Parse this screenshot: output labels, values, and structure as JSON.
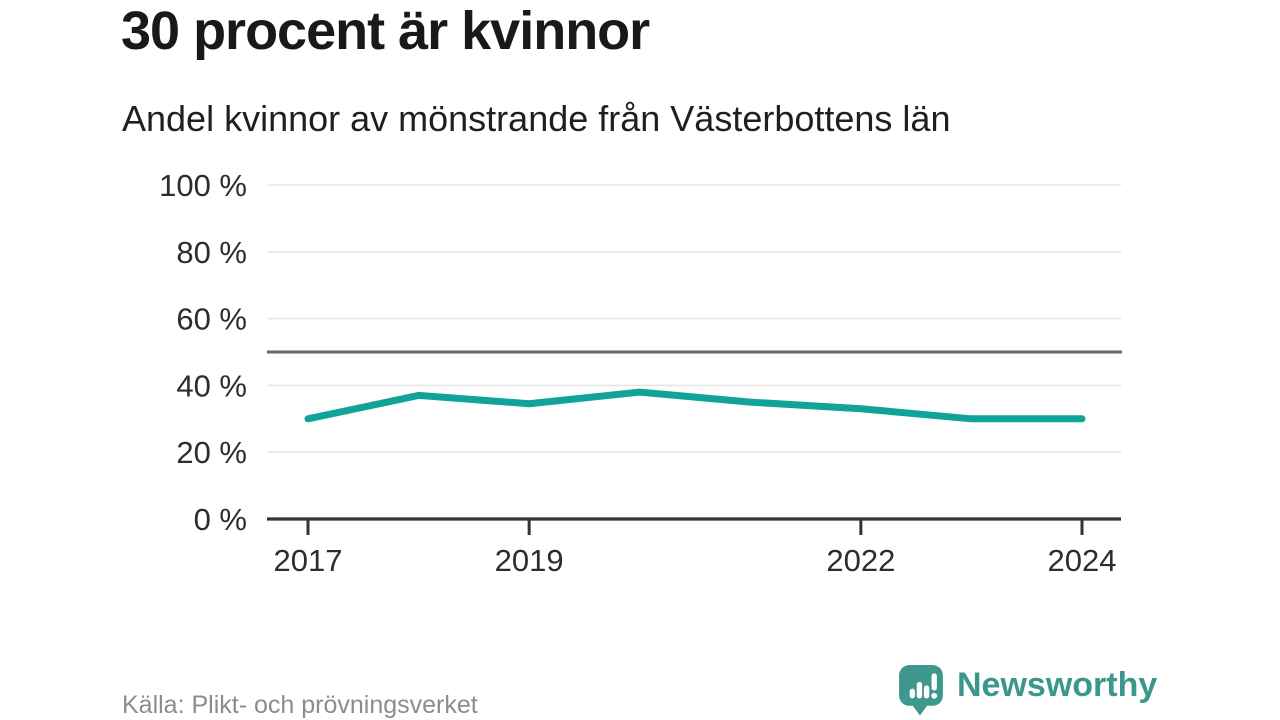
{
  "header": {
    "title": "30 procent är kvinnor",
    "subtitle": "Andel kvinnor av mönstrande från Västerbottens län"
  },
  "chart_data": {
    "type": "line",
    "title": "30 procent är kvinnor",
    "subtitle": "Andel kvinnor av mönstrande från Västerbottens län",
    "source": "Källa: Plikt- och prövningsverket",
    "x": [
      2017,
      2018,
      2019,
      2020,
      2021,
      2022,
      2023,
      2024
    ],
    "series": [
      {
        "name": "Andel kvinnor av mönstrande",
        "values": [
          30,
          37,
          34.5,
          38,
          35,
          33,
          30,
          30
        ]
      }
    ],
    "unit": "%",
    "ylim": [
      0,
      100
    ],
    "y_ticks": [
      0,
      20,
      40,
      60,
      80,
      100
    ],
    "y_tick_suffix": " %",
    "x_tick_labels": [
      2017,
      2019,
      2022,
      2024
    ],
    "reference_line": 50,
    "grid": "horizontal",
    "legend": "none",
    "colors": {
      "line": "#0fa39a",
      "grid": "#e5e5e5",
      "axis": "#343434",
      "reference_line": "#666666",
      "tick_label": "#2d2d2d"
    }
  },
  "footer": {
    "source": "Källa: Plikt- och prövningsverket",
    "brand": {
      "name": "Newsworthy",
      "logo_icon": "speech-bubble-bar-chart-icon",
      "color": "#3f988d"
    }
  }
}
